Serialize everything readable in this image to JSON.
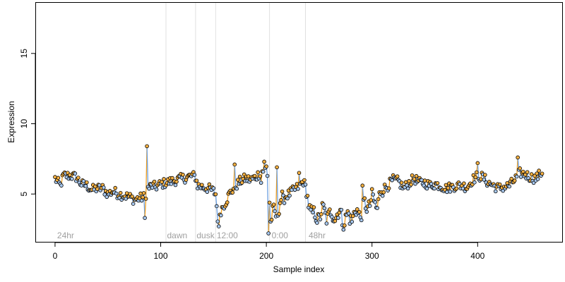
{
  "chart_data": {
    "type": "scatter",
    "xlabel": "Sample index",
    "ylabel": "Expression",
    "xlim": [
      -18,
      480
    ],
    "ylim": [
      1.6,
      18.6
    ],
    "xticks": [
      0,
      100,
      200,
      300,
      400
    ],
    "yticks": [
      5,
      10,
      15
    ],
    "grid": false,
    "colors": {
      "point_fill_up": "#f5b041",
      "point_fill_down": "#a8c8ee",
      "segment_up": "#f0a020",
      "segment_down": "#6a9ee0",
      "segment_neutral": "#a8a8a8",
      "divider": "#e0e0e0",
      "region_label": "#a0a0a0"
    },
    "regions": [
      {
        "label": "24hr",
        "x": 2,
        "divider_at": null
      },
      {
        "label": "dawn",
        "x": 106,
        "divider_at": 105
      },
      {
        "label": "dusk",
        "x": 134,
        "divider_at": 133
      },
      {
        "label": "12:00",
        "x": 153,
        "divider_at": 152
      },
      {
        "label": "0:00",
        "x": 205,
        "divider_at": 203
      },
      {
        "label": "48hr",
        "x": 240,
        "divider_at": 237
      }
    ],
    "anchors": [
      [
        0,
        6.1
      ],
      [
        5,
        5.6
      ],
      [
        8,
        6.3
      ],
      [
        15,
        6.3
      ],
      [
        20,
        6.2
      ],
      [
        25,
        5.7
      ],
      [
        30,
        5.6
      ],
      [
        35,
        5.3
      ],
      [
        40,
        5.4
      ],
      [
        45,
        5.4
      ],
      [
        50,
        5.0
      ],
      [
        55,
        5.2
      ],
      [
        60,
        5.0
      ],
      [
        65,
        4.9
      ],
      [
        70,
        4.8
      ],
      [
        75,
        4.6
      ],
      [
        80,
        4.7
      ],
      [
        85,
        4.8
      ],
      [
        88,
        5.4
      ],
      [
        92,
        5.6
      ],
      [
        95,
        5.5
      ],
      [
        100,
        5.7
      ],
      [
        105,
        5.8
      ],
      [
        110,
        5.9
      ],
      [
        115,
        6.0
      ],
      [
        120,
        6.1
      ],
      [
        125,
        6.2
      ],
      [
        130,
        6.3
      ],
      [
        133,
        6.2
      ],
      [
        135,
        5.6
      ],
      [
        140,
        5.5
      ],
      [
        145,
        5.4
      ],
      [
        150,
        5.2
      ],
      [
        152,
        5.0
      ],
      [
        154,
        3.3
      ],
      [
        158,
        4.0
      ],
      [
        162,
        4.5
      ],
      [
        165,
        5.0
      ],
      [
        170,
        5.5
      ],
      [
        175,
        5.9
      ],
      [
        180,
        6.1
      ],
      [
        185,
        6.0
      ],
      [
        190,
        6.2
      ],
      [
        195,
        6.6
      ],
      [
        200,
        6.8
      ],
      [
        202,
        6.5
      ],
      [
        204,
        3.0
      ],
      [
        207,
        3.5
      ],
      [
        212,
        4.1
      ],
      [
        218,
        4.8
      ],
      [
        225,
        5.2
      ],
      [
        230,
        5.5
      ],
      [
        235,
        5.9
      ],
      [
        237,
        5.5
      ],
      [
        240,
        4.4
      ],
      [
        245,
        3.3
      ],
      [
        250,
        3.5
      ],
      [
        255,
        3.7
      ],
      [
        260,
        3.4
      ],
      [
        265,
        3.6
      ],
      [
        270,
        3.5
      ],
      [
        275,
        3.2
      ],
      [
        280,
        3.4
      ],
      [
        285,
        3.6
      ],
      [
        290,
        3.8
      ],
      [
        295,
        4.2
      ],
      [
        300,
        4.5
      ],
      [
        305,
        4.3
      ],
      [
        310,
        5.3
      ],
      [
        315,
        5.6
      ],
      [
        320,
        6.0
      ],
      [
        325,
        5.9
      ],
      [
        330,
        5.4
      ],
      [
        335,
        5.8
      ],
      [
        340,
        6.1
      ],
      [
        345,
        5.8
      ],
      [
        350,
        5.8
      ],
      [
        355,
        5.6
      ],
      [
        360,
        5.7
      ],
      [
        365,
        5.6
      ],
      [
        370,
        5.4
      ],
      [
        375,
        5.5
      ],
      [
        380,
        5.6
      ],
      [
        385,
        5.6
      ],
      [
        390,
        5.5
      ],
      [
        395,
        6.0
      ],
      [
        400,
        6.3
      ],
      [
        405,
        6.2
      ],
      [
        410,
        5.8
      ],
      [
        415,
        5.6
      ],
      [
        420,
        5.4
      ],
      [
        425,
        5.5
      ],
      [
        430,
        5.6
      ],
      [
        435,
        6.0
      ],
      [
        440,
        6.5
      ],
      [
        445,
        6.4
      ],
      [
        450,
        6.2
      ],
      [
        455,
        6.1
      ],
      [
        460,
        6.5
      ]
    ],
    "spikes": [
      {
        "x": 87,
        "y": 8.4
      },
      {
        "x": 85,
        "y": 3.3
      },
      {
        "x": 198,
        "y": 7.3
      },
      {
        "x": 210,
        "y": 6.9
      },
      {
        "x": 195,
        "y": 5.8
      },
      {
        "x": 231,
        "y": 6.5
      },
      {
        "x": 438,
        "y": 7.6
      },
      {
        "x": 400,
        "y": 7.2
      },
      {
        "x": 291,
        "y": 5.6
      },
      {
        "x": 155,
        "y": 2.7
      },
      {
        "x": 202,
        "y": 2.2
      },
      {
        "x": 170,
        "y": 7.1
      }
    ],
    "n_points": 462
  }
}
